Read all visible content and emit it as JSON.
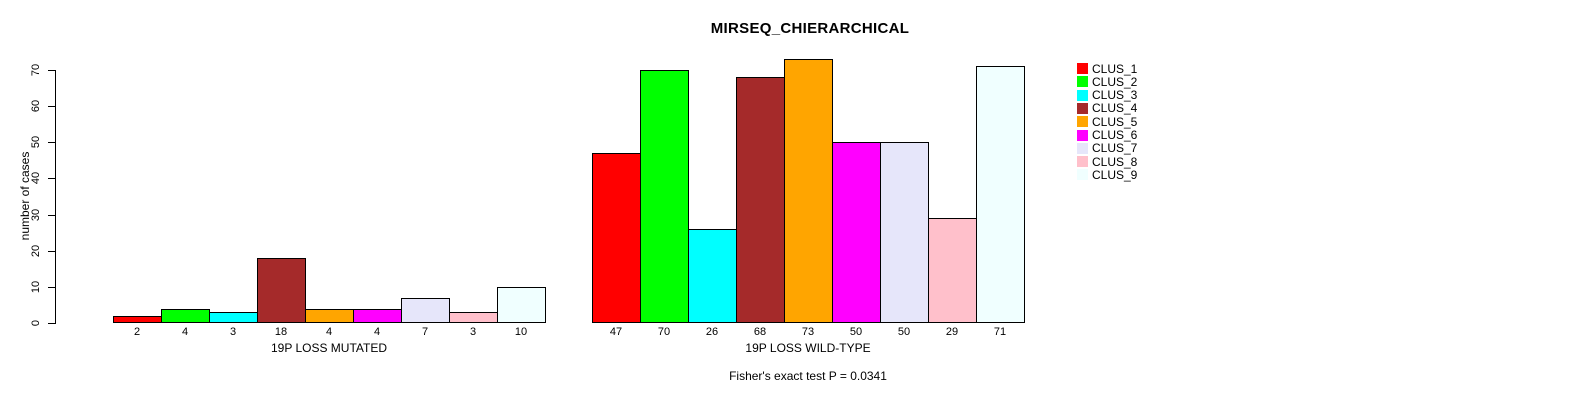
{
  "chart_data": {
    "type": "bar",
    "title": "MIRSEQ_CHIERARCHICAL",
    "ylabel": "number of cases",
    "yticks": [
      0,
      10,
      20,
      30,
      40,
      50,
      60,
      70
    ],
    "ylim": [
      0,
      70
    ],
    "grid": false,
    "legend_position": "right",
    "clusters": [
      "CLUS_1",
      "CLUS_2",
      "CLUS_3",
      "CLUS_4",
      "CLUS_5",
      "CLUS_6",
      "CLUS_7",
      "CLUS_8",
      "CLUS_9"
    ],
    "colors": [
      "#ff0000",
      "#00ff00",
      "#00ffff",
      "#a52a2a",
      "#ffa500",
      "#ff00ff",
      "#e6e6fa",
      "#ffc0cb",
      "#f0ffff"
    ],
    "series": [
      {
        "name": "19P LOSS MUTATED",
        "values": [
          2,
          4,
          3,
          18,
          4,
          4,
          7,
          3,
          10
        ]
      },
      {
        "name": "19P LOSS WILD-TYPE",
        "values": [
          47,
          70,
          26,
          68,
          73,
          50,
          50,
          29,
          71
        ]
      }
    ],
    "footnote": "Fisher's exact test P = 0.0341"
  }
}
